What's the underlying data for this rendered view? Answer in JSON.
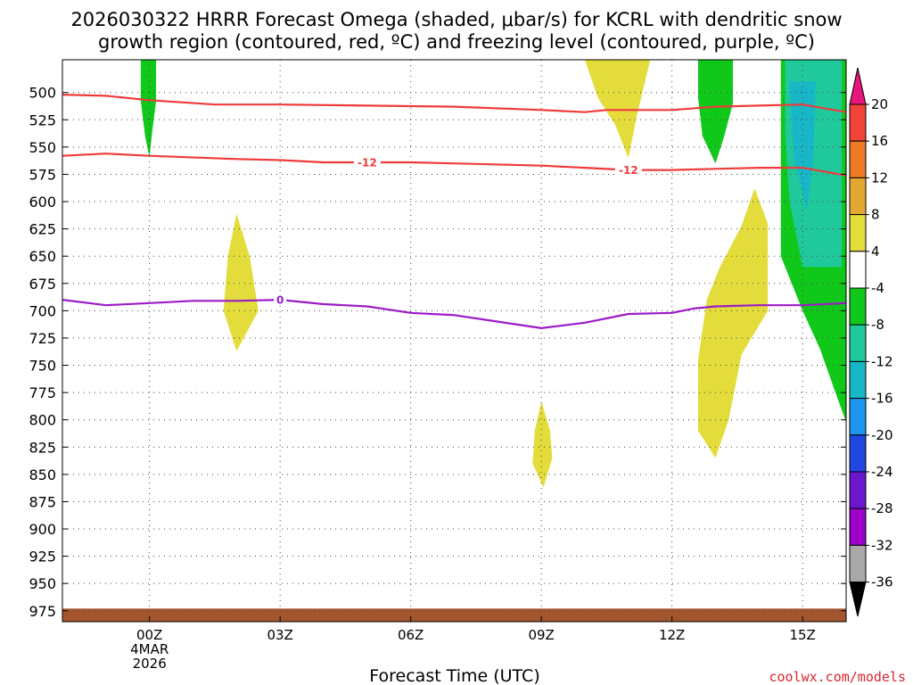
{
  "chart_data": {
    "type": "time-height contour",
    "title_lines": [
      "2026030322 HRRR Forecast Omega (shaded, μbar/s) for KCRL with dendritic snow",
      "growth region (contoured, red, ºC) and freezing level (contoured, purple, ºC)"
    ],
    "xlabel": "Forecast Time (UTC)",
    "credit": "coolwx.com/models",
    "x_hours_range": [
      -2.0,
      16.0
    ],
    "x_ticks": [
      {
        "hour": 0,
        "label": "00Z",
        "sub": [
          "4MAR",
          "2026"
        ]
      },
      {
        "hour": 3,
        "label": "03Z",
        "sub": []
      },
      {
        "hour": 6,
        "label": "06Z",
        "sub": []
      },
      {
        "hour": 9,
        "label": "09Z",
        "sub": []
      },
      {
        "hour": 12,
        "label": "12Z",
        "sub": []
      },
      {
        "hour": 15,
        "label": "15Z",
        "sub": []
      }
    ],
    "y_ticks": [
      500,
      525,
      550,
      575,
      600,
      625,
      650,
      675,
      700,
      725,
      750,
      775,
      800,
      825,
      850,
      875,
      900,
      925,
      950,
      975
    ],
    "y_range": [
      470,
      985
    ],
    "colorbar": {
      "labels": [
        "20",
        "16",
        "12",
        "8",
        "4",
        "-4",
        "-8",
        "-12",
        "-16",
        "-20",
        "-24",
        "-28",
        "-32",
        "-36"
      ],
      "colors": [
        "#e8157a",
        "#f0443a",
        "#ef7a25",
        "#e5a734",
        "#e3dc3b",
        "#ffffff",
        "#10c81a",
        "#1fc99c",
        "#17b7c8",
        "#1f95ef",
        "#2146e2",
        "#6b17cd",
        "#9c00c9",
        "#a9a9a9",
        "#000000"
      ]
    },
    "contours": [
      {
        "name": "dgz-upper",
        "label": "",
        "color": "#ef3b3b",
        "points": [
          [
            -2.0,
            502
          ],
          [
            -1.0,
            503
          ],
          [
            0.0,
            507
          ],
          [
            1.5,
            511
          ],
          [
            3.0,
            511
          ],
          [
            5.0,
            512
          ],
          [
            7.0,
            513
          ],
          [
            9.0,
            516
          ],
          [
            10.0,
            518
          ],
          [
            10.5,
            516
          ],
          [
            12.0,
            516
          ],
          [
            13.0,
            513
          ],
          [
            14.0,
            512
          ],
          [
            15.0,
            511
          ],
          [
            16.0,
            518
          ]
        ]
      },
      {
        "name": "dgz-lower",
        "label": "-12",
        "label_at": [
          [
            5.0,
            564
          ],
          [
            11.0,
            571
          ]
        ],
        "color": "#ef3b3b",
        "points": [
          [
            -2.0,
            558
          ],
          [
            -1.0,
            556
          ],
          [
            0.0,
            558
          ],
          [
            2.0,
            561
          ],
          [
            3.0,
            562
          ],
          [
            4.0,
            564
          ],
          [
            6.0,
            564
          ],
          [
            7.0,
            565
          ],
          [
            9.0,
            567
          ],
          [
            10.0,
            569
          ],
          [
            11.0,
            571
          ],
          [
            12.0,
            571
          ],
          [
            13.0,
            570
          ],
          [
            14.0,
            569
          ],
          [
            15.0,
            569
          ],
          [
            16.0,
            576
          ]
        ]
      },
      {
        "name": "freezing-level",
        "label": "0",
        "label_at": [
          [
            3.0,
            690
          ]
        ],
        "color": "#9c1bc8",
        "points": [
          [
            -2.0,
            690
          ],
          [
            -1.0,
            695
          ],
          [
            0.0,
            693
          ],
          [
            1.0,
            691
          ],
          [
            2.0,
            691
          ],
          [
            3.0,
            690
          ],
          [
            4.0,
            694
          ],
          [
            5.0,
            696
          ],
          [
            6.0,
            702
          ],
          [
            7.0,
            704
          ],
          [
            8.0,
            710
          ],
          [
            9.0,
            716
          ],
          [
            10.0,
            711
          ],
          [
            11.0,
            703
          ],
          [
            12.0,
            702
          ],
          [
            12.5,
            698
          ],
          [
            13.0,
            696
          ],
          [
            14.0,
            695
          ],
          [
            15.0,
            695
          ],
          [
            16.0,
            693
          ]
        ]
      }
    ],
    "shaded_regions": [
      {
        "name": "omega-neg8-0z",
        "value_bin": "-4 to -8",
        "color": "#10c81a",
        "points": [
          [
            -0.2,
            470
          ],
          [
            0.15,
            470
          ],
          [
            0.15,
            508
          ],
          [
            0.05,
            540
          ],
          [
            0.0,
            560
          ],
          [
            -0.1,
            540
          ],
          [
            -0.2,
            508
          ]
        ]
      },
      {
        "name": "omega-pos4-02z",
        "value_bin": "4 to 8",
        "color": "#e3dc3b",
        "points": [
          [
            2.0,
            611
          ],
          [
            2.3,
            650
          ],
          [
            2.5,
            700
          ],
          [
            2.0,
            737
          ],
          [
            1.7,
            700
          ],
          [
            1.8,
            650
          ]
        ]
      },
      {
        "name": "omega-pos4-09z",
        "value_bin": "4 to 8",
        "color": "#e3dc3b",
        "points": [
          [
            9.0,
            783
          ],
          [
            9.2,
            810
          ],
          [
            9.25,
            835
          ],
          [
            9.05,
            862
          ],
          [
            8.8,
            840
          ],
          [
            8.85,
            810
          ]
        ]
      },
      {
        "name": "omega-pos4-11z",
        "value_bin": "4 to 8",
        "color": "#e3dc3b",
        "points": [
          [
            10.0,
            470
          ],
          [
            11.5,
            470
          ],
          [
            11.2,
            520
          ],
          [
            11.0,
            560
          ],
          [
            10.7,
            530
          ],
          [
            10.3,
            505
          ]
        ]
      },
      {
        "name": "omega-neg8-13z",
        "value_bin": "-4 to -8",
        "color": "#10c81a",
        "points": [
          [
            12.6,
            470
          ],
          [
            13.4,
            470
          ],
          [
            13.4,
            510
          ],
          [
            13.2,
            540
          ],
          [
            13.0,
            565
          ],
          [
            12.7,
            540
          ],
          [
            12.6,
            505
          ]
        ]
      },
      {
        "name": "omega-pos4-13z",
        "value_bin": "4 to 8",
        "color": "#e3dc3b",
        "points": [
          [
            13.9,
            588
          ],
          [
            14.2,
            620
          ],
          [
            14.2,
            700
          ],
          [
            13.6,
            740
          ],
          [
            13.3,
            800
          ],
          [
            13.0,
            835
          ],
          [
            12.6,
            810
          ],
          [
            12.6,
            745
          ],
          [
            12.8,
            690
          ],
          [
            13.1,
            660
          ],
          [
            13.6,
            622
          ]
        ]
      },
      {
        "name": "omega-neg8-15z",
        "value_bin": "-4 to -8",
        "color": "#10c81a",
        "points": [
          [
            14.5,
            470
          ],
          [
            16.0,
            470
          ],
          [
            16.0,
            802
          ],
          [
            15.8,
            780
          ],
          [
            15.4,
            735
          ],
          [
            15.0,
            700
          ],
          [
            14.5,
            650
          ],
          [
            14.5,
            560
          ]
        ]
      },
      {
        "name": "omega-neg12-15z",
        "value_bin": "-8 to -12",
        "color": "#1fc99c",
        "points": [
          [
            14.6,
            470
          ],
          [
            15.9,
            470
          ],
          [
            15.9,
            660
          ],
          [
            15.0,
            660
          ],
          [
            14.7,
            600
          ],
          [
            14.6,
            540
          ]
        ]
      },
      {
        "name": "omega-neg16-15z",
        "value_bin": "-12 to -16",
        "color": "#17b7c8",
        "points": [
          [
            14.7,
            490
          ],
          [
            15.3,
            490
          ],
          [
            15.25,
            560
          ],
          [
            15.1,
            608
          ],
          [
            14.8,
            560
          ]
        ]
      }
    ],
    "terrain": {
      "name": "surface-terrain",
      "color": "#a3562e",
      "top_pressure": 973,
      "bottom_pressure": 985
    }
  }
}
